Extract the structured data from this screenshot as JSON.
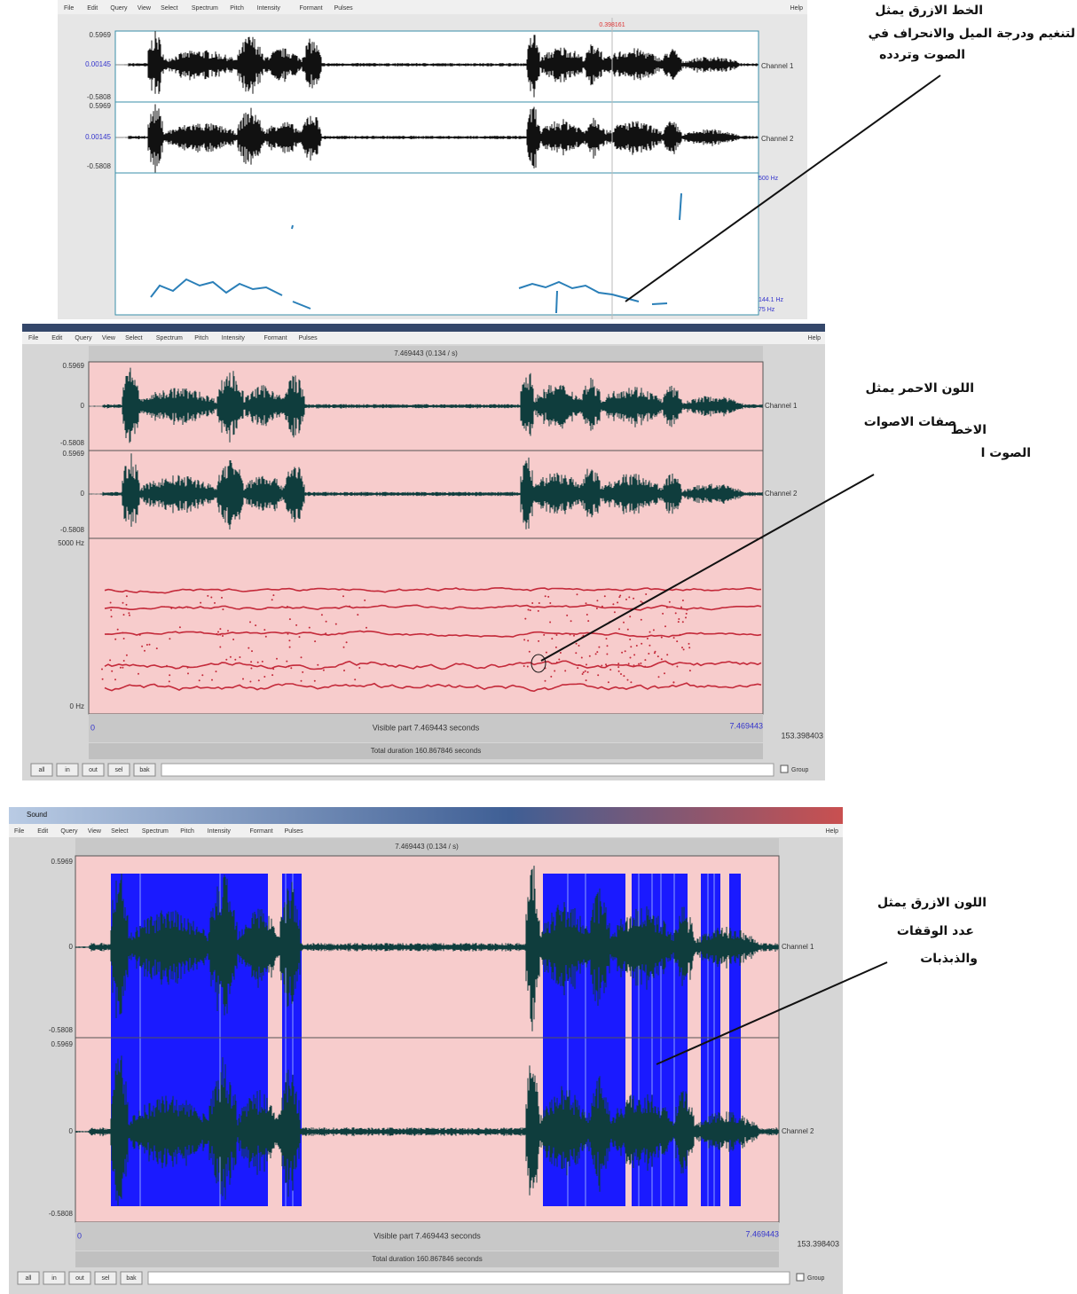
{
  "panels": [
    {
      "menu": [
        "File",
        "Edit",
        "Query",
        "View",
        "Select",
        "Spectrum",
        "Pitch",
        "Intensity",
        "Formant",
        "Pulses"
      ],
      "help": "Help",
      "cursor_time": "0.398161",
      "axis_labels": [
        "0.5969",
        "0.00145",
        "-0.5808",
        "0.5969",
        "0.00145",
        "-0.5808"
      ],
      "channels": [
        "Channel 1",
        "Channel 2"
      ],
      "pitch_labels": [
        "500 Hz",
        "144.1 Hz",
        "75 Hz"
      ]
    },
    {
      "menu": [
        "File",
        "Edit",
        "Query",
        "View",
        "Select",
        "Spectrum",
        "Pitch",
        "Intensity",
        "Formant",
        "Pulses"
      ],
      "help": "Help",
      "info": "7.469443 (0.134 / s)",
      "axis_labels": [
        "0.5969",
        "0",
        "-0.5808",
        "0.5969",
        "0",
        "-0.5808"
      ],
      "channels": [
        "Channel 1",
        "Channel 2"
      ],
      "spectrum_labels": [
        "5000 Hz",
        "0 Hz"
      ],
      "start": "0",
      "visible": "Visible part 7.469443 seconds",
      "end": "7.469443",
      "total_time": "153.398403",
      "total": "Total duration 160.867846 seconds",
      "buttons": [
        "all",
        "in",
        "out",
        "sel",
        "bak"
      ],
      "group": "Group"
    },
    {
      "window_title": "Sound",
      "menu": [
        "File",
        "Edit",
        "Query",
        "View",
        "Select",
        "Spectrum",
        "Pitch",
        "Intensity",
        "Formant",
        "Pulses"
      ],
      "help": "Help",
      "info": "7.469443 (0.134 / s)",
      "axis_labels": [
        "0.5969",
        "0",
        "-0.5808",
        "0.5969",
        "0",
        "-0.5808"
      ],
      "channels": [
        "Channel 1",
        "Channel 2"
      ],
      "start": "0",
      "visible": "Visible part 7.469443 seconds",
      "end": "7.469443",
      "total_time": "153.398403",
      "total": "Total duration 160.867846 seconds",
      "buttons": [
        "all",
        "in",
        "out",
        "sel",
        "bak"
      ],
      "group": "Group"
    }
  ],
  "annotations": [
    {
      "lines": [
        "الخط الازرق يمثل",
        "لتنغيم ودرجة الميل والانحراف في",
        "الصوت وتردده"
      ]
    },
    {
      "lines": [
        "اللون الاحمر يمثل",
        "صفات الاصوات",
        "الاخط",
        "الصوت ا"
      ]
    },
    {
      "lines": [
        "اللون الازرق يمثل",
        "عدد الوقفات",
        "والذبذبات"
      ]
    }
  ]
}
